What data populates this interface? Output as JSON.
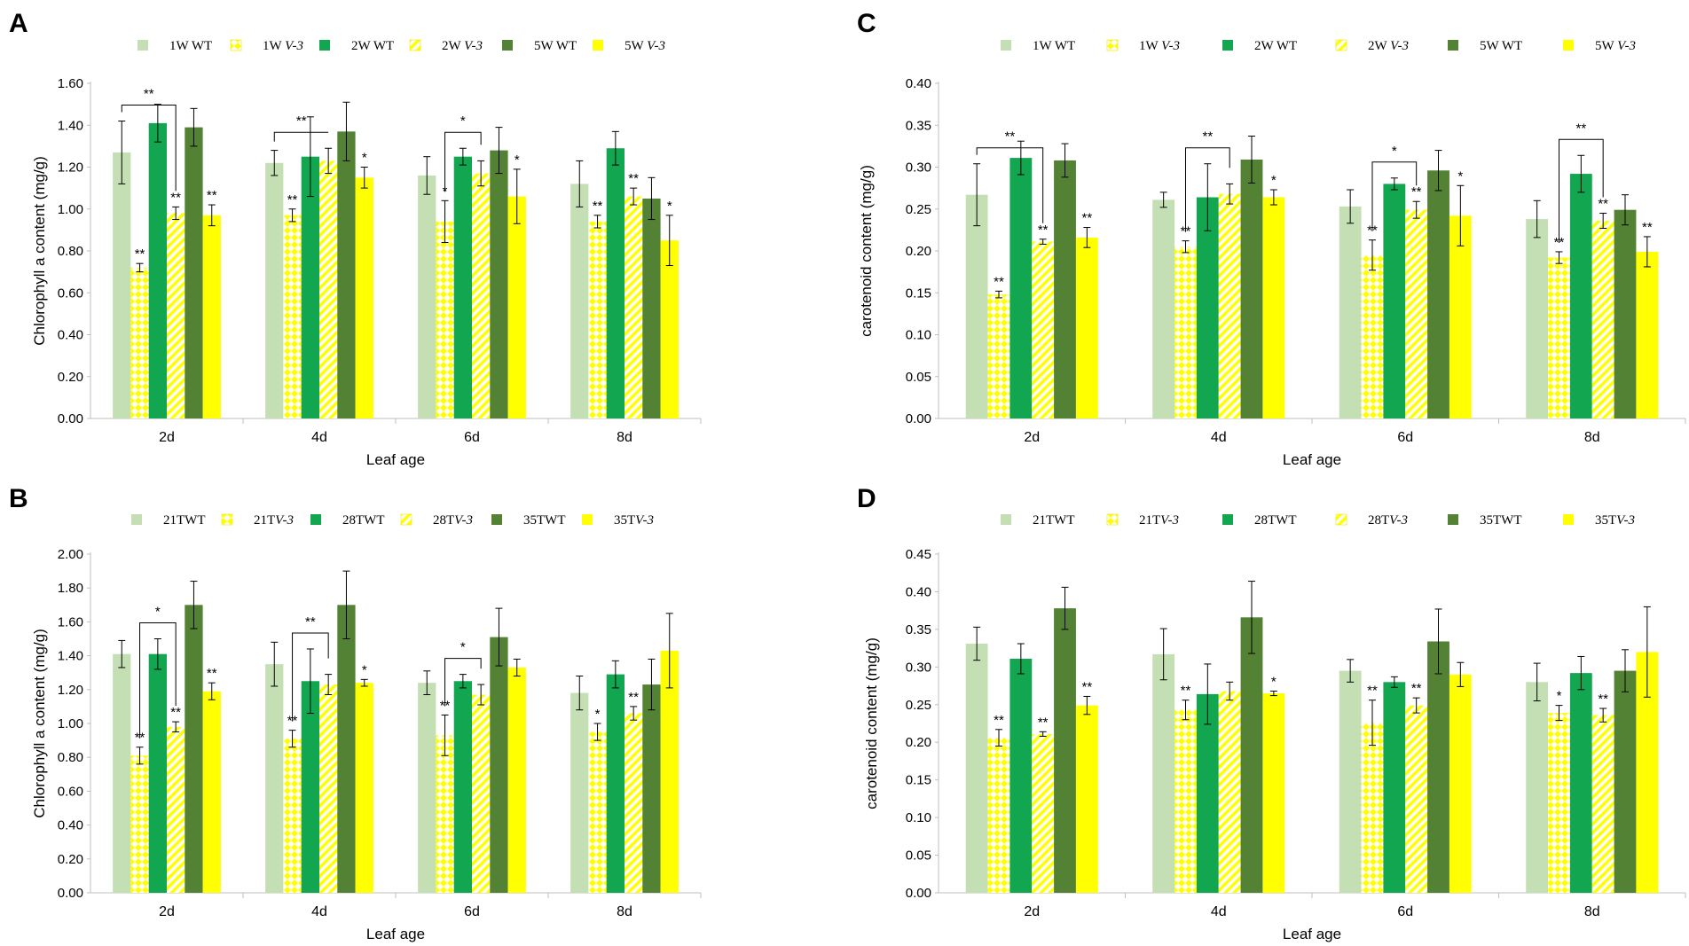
{
  "figure": {
    "colors": {
      "wt_light": "#c5dfb4",
      "wt_mid": "#12a651",
      "wt_dark": "#548235",
      "yellow": "#ffff00",
      "bracket": "#000000",
      "axis": "#d9d9d9"
    }
  },
  "chart_data": [
    {
      "panel": "A",
      "type": "bar",
      "title": "",
      "xlabel": "Leaf age",
      "ylabel": "Chlorophyll a content (mg/g)",
      "ylim": [
        0,
        1.6
      ],
      "yticks": [
        "0.00",
        "0.20",
        "0.40",
        "0.60",
        "0.80",
        "1.00",
        "1.20",
        "1.40",
        "1.60"
      ],
      "categories": [
        "2d",
        "4d",
        "6d",
        "8d"
      ],
      "legend": [
        {
          "prefix": "1W ",
          "italic": "WT"
        },
        {
          "prefix": "1W ",
          "italic": "V-3"
        },
        {
          "prefix": "2W ",
          "italic": "WT"
        },
        {
          "prefix": "2W ",
          "italic": "V-3"
        },
        {
          "prefix": "5W ",
          "italic": "WT"
        },
        {
          "prefix": "5W ",
          "italic": "V-3"
        }
      ],
      "series": [
        {
          "name": "1W WT",
          "style": "wt_light",
          "values": [
            1.27,
            1.22,
            1.16,
            1.12
          ],
          "errors": [
            0.15,
            0.06,
            0.09,
            0.11
          ],
          "stars": [
            "",
            "",
            "",
            ""
          ]
        },
        {
          "name": "1W V-3",
          "style": "yellow_diamond",
          "values": [
            0.72,
            0.97,
            0.94,
            0.94
          ],
          "errors": [
            0.02,
            0.03,
            0.1,
            0.03
          ],
          "stars": [
            "**",
            "**",
            "*",
            "**"
          ]
        },
        {
          "name": "2W WT",
          "style": "wt_mid",
          "values": [
            1.41,
            1.25,
            1.25,
            1.29
          ],
          "errors": [
            0.09,
            0.19,
            0.04,
            0.08
          ],
          "stars": [
            "",
            "",
            "",
            ""
          ]
        },
        {
          "name": "2W V-3",
          "style": "yellow_stripe",
          "values": [
            0.98,
            1.23,
            1.17,
            1.06
          ],
          "errors": [
            0.03,
            0.06,
            0.06,
            0.04
          ],
          "stars": [
            "**",
            "",
            "",
            "**"
          ]
        },
        {
          "name": "5W WT",
          "style": "wt_dark",
          "values": [
            1.39,
            1.37,
            1.28,
            1.05
          ],
          "errors": [
            0.09,
            0.14,
            0.11,
            0.1
          ],
          "stars": [
            "",
            "",
            "",
            ""
          ]
        },
        {
          "name": "5W V-3",
          "style": "yellow_solid",
          "values": [
            0.97,
            1.15,
            1.06,
            0.85
          ],
          "errors": [
            0.05,
            0.05,
            0.13,
            0.12
          ],
          "stars": [
            "**",
            "*",
            "*",
            "*"
          ]
        }
      ],
      "brackets": [
        {
          "category": 0,
          "from": 0,
          "to": 3,
          "label": "**"
        },
        {
          "category": 1,
          "from": 0,
          "to": 3,
          "label": "**"
        },
        {
          "category": 2,
          "from": 1,
          "to": 3,
          "label": "*"
        }
      ]
    },
    {
      "panel": "B",
      "type": "bar",
      "title": "",
      "xlabel": "Leaf age",
      "ylabel": "Chlorophyll a content (mg/g)",
      "ylim": [
        0,
        2.0
      ],
      "yticks": [
        "0.00",
        "0.20",
        "0.40",
        "0.60",
        "0.80",
        "1.00",
        "1.20",
        "1.40",
        "1.60",
        "1.80",
        "2.00"
      ],
      "categories": [
        "2d",
        "4d",
        "6d",
        "8d"
      ],
      "legend": [
        {
          "prefix": "21T",
          "italic": "WT"
        },
        {
          "prefix": "21T",
          "italic": "V-3"
        },
        {
          "prefix": "28T",
          "italic": "WT"
        },
        {
          "prefix": "28T",
          "italic": "V-3"
        },
        {
          "prefix": "35T",
          "italic": "WT"
        },
        {
          "prefix": "35T",
          "italic": "V-3"
        }
      ],
      "series": [
        {
          "name": "21TWT",
          "style": "wt_light",
          "values": [
            1.41,
            1.35,
            1.24,
            1.18
          ],
          "errors": [
            0.08,
            0.13,
            0.07,
            0.1
          ],
          "stars": [
            "",
            "",
            "",
            ""
          ]
        },
        {
          "name": "21TV-3",
          "style": "yellow_diamond",
          "values": [
            0.81,
            0.91,
            0.93,
            0.95
          ],
          "errors": [
            0.05,
            0.05,
            0.12,
            0.05
          ],
          "stars": [
            "**",
            "**",
            "**",
            "*"
          ]
        },
        {
          "name": "28TWT",
          "style": "wt_mid",
          "values": [
            1.41,
            1.25,
            1.25,
            1.29
          ],
          "errors": [
            0.09,
            0.19,
            0.04,
            0.08
          ],
          "stars": [
            "",
            "",
            "",
            ""
          ]
        },
        {
          "name": "28TV-3",
          "style": "yellow_stripe",
          "values": [
            0.98,
            1.23,
            1.17,
            1.06
          ],
          "errors": [
            0.03,
            0.06,
            0.06,
            0.04
          ],
          "stars": [
            "**",
            "",
            "",
            "**"
          ]
        },
        {
          "name": "35TWT",
          "style": "wt_dark",
          "values": [
            1.7,
            1.7,
            1.51,
            1.23
          ],
          "errors": [
            0.14,
            0.2,
            0.17,
            0.15
          ],
          "stars": [
            "",
            "",
            "",
            ""
          ]
        },
        {
          "name": "35TV-3",
          "style": "yellow_solid",
          "values": [
            1.19,
            1.24,
            1.33,
            1.43
          ],
          "errors": [
            0.05,
            0.02,
            0.05,
            0.22
          ],
          "stars": [
            "**",
            "*",
            "",
            ""
          ]
        }
      ],
      "brackets": [
        {
          "category": 0,
          "from": 1,
          "to": 3,
          "label": "*"
        },
        {
          "category": 1,
          "from": 1,
          "to": 3,
          "label": "**"
        },
        {
          "category": 2,
          "from": 1,
          "to": 3,
          "label": "*"
        }
      ]
    },
    {
      "panel": "C",
      "type": "bar",
      "title": "",
      "xlabel": "Leaf age",
      "ylabel": "carotenoid  content (mg/g)",
      "ylim": [
        0,
        0.4
      ],
      "yticks": [
        "0.00",
        "0.05",
        "0.10",
        "0.15",
        "0.20",
        "0.25",
        "0.30",
        "0.35",
        "0.40"
      ],
      "categories": [
        "2d",
        "4d",
        "6d",
        "8d"
      ],
      "legend": [
        {
          "prefix": "1W ",
          "italic": "WT"
        },
        {
          "prefix": "1W ",
          "italic": "V-3"
        },
        {
          "prefix": "2W ",
          "italic": "WT"
        },
        {
          "prefix": "2W ",
          "italic": "V-3"
        },
        {
          "prefix": "5W ",
          "italic": "WT"
        },
        {
          "prefix": "5W ",
          "italic": "V-3"
        }
      ],
      "series": [
        {
          "name": "1W WT",
          "style": "wt_light",
          "values": [
            0.267,
            0.261,
            0.253,
            0.238
          ],
          "errors": [
            0.037,
            0.009,
            0.02,
            0.022
          ],
          "stars": [
            "",
            "",
            "",
            ""
          ]
        },
        {
          "name": "1W V-3",
          "style": "yellow_diamond",
          "values": [
            0.148,
            0.205,
            0.195,
            0.192
          ],
          "errors": [
            0.004,
            0.007,
            0.018,
            0.007
          ],
          "stars": [
            "**",
            "**",
            "**",
            "**"
          ]
        },
        {
          "name": "2W WT",
          "style": "wt_mid",
          "values": [
            0.311,
            0.264,
            0.28,
            0.292
          ],
          "errors": [
            0.02,
            0.04,
            0.007,
            0.022
          ],
          "stars": [
            "",
            "",
            "",
            ""
          ]
        },
        {
          "name": "2W V-3",
          "style": "yellow_stripe",
          "values": [
            0.211,
            0.268,
            0.249,
            0.236
          ],
          "errors": [
            0.003,
            0.012,
            0.01,
            0.009
          ],
          "stars": [
            "**",
            "",
            "**",
            "**"
          ]
        },
        {
          "name": "5W WT",
          "style": "wt_dark",
          "values": [
            0.308,
            0.309,
            0.296,
            0.249
          ],
          "errors": [
            0.02,
            0.028,
            0.024,
            0.018
          ],
          "stars": [
            "",
            "",
            "",
            ""
          ]
        },
        {
          "name": "5W V-3",
          "style": "yellow_solid",
          "values": [
            0.216,
            0.264,
            0.242,
            0.199
          ],
          "errors": [
            0.012,
            0.009,
            0.036,
            0.018
          ],
          "stars": [
            "**",
            "*",
            "*",
            "**"
          ]
        }
      ],
      "brackets": [
        {
          "category": 0,
          "from": 0,
          "to": 3,
          "label": "**"
        },
        {
          "category": 1,
          "from": 1,
          "to": 3,
          "label": "**"
        },
        {
          "category": 2,
          "from": 1,
          "to": 3,
          "label": "*"
        },
        {
          "category": 3,
          "from": 1,
          "to": 3,
          "label": "**"
        }
      ]
    },
    {
      "panel": "D",
      "type": "bar",
      "title": "",
      "xlabel": "Leaf age",
      "ylabel": "carotenoid  content (mg/g)",
      "ylim": [
        0,
        0.45
      ],
      "yticks": [
        "0.00",
        "0.05",
        "0.10",
        "0.15",
        "0.20",
        "0.25",
        "0.30",
        "0.35",
        "0.40",
        "0.45"
      ],
      "categories": [
        "2d",
        "4d",
        "6d",
        "8d"
      ],
      "legend": [
        {
          "prefix": "21T",
          "italic": "WT"
        },
        {
          "prefix": "21T",
          "italic": "V-3"
        },
        {
          "prefix": "28T",
          "italic": "WT"
        },
        {
          "prefix": "28T",
          "italic": "V-3"
        },
        {
          "prefix": "35T",
          "italic": "WT"
        },
        {
          "prefix": "35T",
          "italic": "V-3"
        }
      ],
      "series": [
        {
          "name": "21TWT",
          "style": "wt_light",
          "values": [
            0.331,
            0.317,
            0.295,
            0.28
          ],
          "errors": [
            0.022,
            0.034,
            0.015,
            0.025
          ],
          "stars": [
            "",
            "",
            "",
            ""
          ]
        },
        {
          "name": "21TV-3",
          "style": "yellow_diamond",
          "values": [
            0.206,
            0.243,
            0.226,
            0.239
          ],
          "errors": [
            0.011,
            0.013,
            0.03,
            0.01
          ],
          "stars": [
            "**",
            "**",
            "**",
            "*"
          ]
        },
        {
          "name": "28TWT",
          "style": "wt_mid",
          "values": [
            0.311,
            0.264,
            0.28,
            0.292
          ],
          "errors": [
            0.02,
            0.04,
            0.007,
            0.022
          ],
          "stars": [
            "",
            "",
            "",
            ""
          ]
        },
        {
          "name": "28TV-3",
          "style": "yellow_stripe",
          "values": [
            0.211,
            0.268,
            0.249,
            0.236
          ],
          "errors": [
            0.003,
            0.012,
            0.01,
            0.009
          ],
          "stars": [
            "**",
            "",
            "**",
            "**"
          ]
        },
        {
          "name": "35TWT",
          "style": "wt_dark",
          "values": [
            0.378,
            0.366,
            0.334,
            0.295
          ],
          "errors": [
            0.028,
            0.048,
            0.043,
            0.028
          ],
          "stars": [
            "",
            "",
            "",
            ""
          ]
        },
        {
          "name": "35TV-3",
          "style": "yellow_solid",
          "values": [
            0.249,
            0.265,
            0.29,
            0.32
          ],
          "errors": [
            0.012,
            0.003,
            0.016,
            0.06
          ],
          "stars": [
            "**",
            "*",
            "",
            ""
          ]
        }
      ],
      "brackets": []
    }
  ]
}
